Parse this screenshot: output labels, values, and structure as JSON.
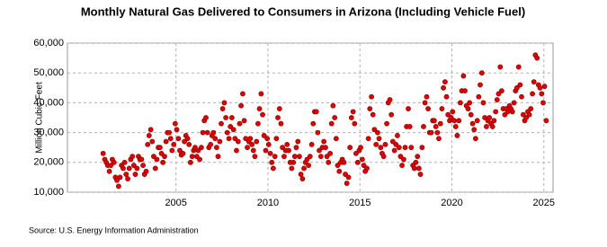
{
  "chart_data": {
    "type": "scatter",
    "title": "Monthly Natural Gas Delivered to Consumers in Arizona (Including Vehicle Fuel)",
    "y_label": "Million Cubic Feet",
    "source": "Source: U.S. Energy Information Administration",
    "color": "#e00000",
    "grid": true,
    "xlim": [
      1999.1,
      2025.5
    ],
    "xticks": [
      2005,
      2010,
      2015,
      2020,
      2025
    ],
    "ylim": [
      10000,
      60000
    ],
    "yticks": [
      {
        "value": 10000,
        "label": "10,000"
      },
      {
        "value": 20000,
        "label": "20,000"
      },
      {
        "value": 30000,
        "label": "30,000"
      },
      {
        "value": 40000,
        "label": "40,000"
      },
      {
        "value": 50000,
        "label": "50,000"
      },
      {
        "value": 60000,
        "label": "60,000"
      }
    ],
    "x": [
      2001.04,
      2001.13,
      2001.21,
      2001.29,
      2001.38,
      2001.46,
      2001.54,
      2001.63,
      2001.71,
      2001.79,
      2001.88,
      2001.96,
      2002.04,
      2002.13,
      2002.21,
      2002.29,
      2002.38,
      2002.46,
      2002.54,
      2002.63,
      2002.71,
      2002.79,
      2002.88,
      2002.96,
      2003.04,
      2003.13,
      2003.21,
      2003.29,
      2003.38,
      2003.46,
      2003.54,
      2003.63,
      2003.71,
      2003.79,
      2003.88,
      2003.96,
      2004.04,
      2004.13,
      2004.21,
      2004.29,
      2004.38,
      2004.46,
      2004.54,
      2004.63,
      2004.71,
      2004.79,
      2004.88,
      2004.96,
      2005.04,
      2005.13,
      2005.21,
      2005.29,
      2005.38,
      2005.46,
      2005.54,
      2005.63,
      2005.71,
      2005.79,
      2005.88,
      2005.96,
      2006.04,
      2006.13,
      2006.21,
      2006.29,
      2006.38,
      2006.46,
      2006.54,
      2006.63,
      2006.71,
      2006.79,
      2006.88,
      2006.96,
      2007.04,
      2007.13,
      2007.21,
      2007.29,
      2007.38,
      2007.46,
      2007.54,
      2007.63,
      2007.71,
      2007.79,
      2007.88,
      2007.96,
      2008.04,
      2008.13,
      2008.21,
      2008.29,
      2008.38,
      2008.46,
      2008.54,
      2008.63,
      2008.71,
      2008.79,
      2008.88,
      2008.96,
      2009.04,
      2009.13,
      2009.21,
      2009.29,
      2009.38,
      2009.46,
      2009.54,
      2009.63,
      2009.71,
      2009.79,
      2009.88,
      2009.96,
      2010.04,
      2010.13,
      2010.21,
      2010.29,
      2010.38,
      2010.46,
      2010.54,
      2010.63,
      2010.71,
      2010.79,
      2010.88,
      2010.96,
      2011.04,
      2011.13,
      2011.21,
      2011.29,
      2011.38,
      2011.46,
      2011.54,
      2011.63,
      2011.71,
      2011.79,
      2011.88,
      2011.96,
      2012.04,
      2012.13,
      2012.21,
      2012.29,
      2012.38,
      2012.46,
      2012.54,
      2012.63,
      2012.71,
      2012.79,
      2012.88,
      2012.96,
      2013.04,
      2013.13,
      2013.21,
      2013.29,
      2013.38,
      2013.46,
      2013.54,
      2013.63,
      2013.71,
      2013.79,
      2013.88,
      2013.96,
      2014.04,
      2014.13,
      2014.21,
      2014.29,
      2014.38,
      2014.46,
      2014.54,
      2014.63,
      2014.71,
      2014.79,
      2014.88,
      2014.96,
      2015.04,
      2015.13,
      2015.21,
      2015.29,
      2015.38,
      2015.46,
      2015.54,
      2015.63,
      2015.71,
      2015.79,
      2015.88,
      2015.96,
      2016.04,
      2016.13,
      2016.21,
      2016.29,
      2016.38,
      2016.46,
      2016.54,
      2016.63,
      2016.71,
      2016.79,
      2016.88,
      2016.96,
      2017.04,
      2017.13,
      2017.21,
      2017.29,
      2017.38,
      2017.46,
      2017.54,
      2017.63,
      2017.71,
      2017.79,
      2017.88,
      2017.96,
      2018.04,
      2018.13,
      2018.21,
      2018.29,
      2018.38,
      2018.46,
      2018.54,
      2018.63,
      2018.71,
      2018.79,
      2018.88,
      2018.96,
      2019.04,
      2019.13,
      2019.21,
      2019.29,
      2019.38,
      2019.46,
      2019.54,
      2019.63,
      2019.71,
      2019.79,
      2019.88,
      2019.96,
      2020.04,
      2020.13,
      2020.21,
      2020.29,
      2020.38,
      2020.46,
      2020.54,
      2020.63,
      2020.71,
      2020.79,
      2020.88,
      2020.96,
      2021.04,
      2021.13,
      2021.21,
      2021.29,
      2021.38,
      2021.46,
      2021.54,
      2021.63,
      2021.71,
      2021.79,
      2021.88,
      2021.96,
      2022.04,
      2022.13,
      2022.21,
      2022.29,
      2022.38,
      2022.46,
      2022.54,
      2022.63,
      2022.71,
      2022.79,
      2022.88,
      2022.96,
      2023.04,
      2023.13,
      2023.21,
      2023.29,
      2023.38,
      2023.46,
      2023.54,
      2023.63,
      2023.71,
      2023.79,
      2023.88,
      2023.96,
      2024.04,
      2024.13,
      2024.21,
      2024.29,
      2024.38,
      2024.46,
      2024.54,
      2024.63,
      2024.71,
      2024.79,
      2024.88,
      2024.96,
      2025.04,
      2025.13
    ],
    "values": [
      23000,
      21000,
      20000,
      19000,
      17000,
      19000,
      21000,
      20000,
      15000,
      14000,
      12000,
      15000,
      19000,
      18000,
      20000,
      16000,
      14500,
      18000,
      21000,
      22000,
      19000,
      16000,
      18000,
      22000,
      21000,
      21000,
      19000,
      16000,
      17000,
      26000,
      29000,
      31000,
      27000,
      22000,
      18000,
      21000,
      25000,
      25000,
      23000,
      20000,
      22000,
      27000,
      30000,
      30000,
      28000,
      24000,
      26000,
      33000,
      31000,
      28000,
      24000,
      22500,
      23000,
      27000,
      29000,
      28000,
      26000,
      20000,
      22000,
      24000,
      25000,
      22000,
      24000,
      21000,
      25000,
      30000,
      34000,
      35000,
      30000,
      25000,
      26000,
      29000,
      30000,
      28000,
      25000,
      22000,
      27000,
      33000,
      38000,
      40000,
      35000,
      30000,
      28000,
      32000,
      35000,
      31000,
      28000,
      24000,
      27000,
      33000,
      39000,
      43000,
      34000,
      28000,
      25000,
      27000,
      28000,
      26000,
      24000,
      22000,
      27000,
      33000,
      38000,
      43000,
      36000,
      29000,
      24000,
      28000,
      26000,
      23000,
      20000,
      18000,
      22000,
      28000,
      35000,
      38000,
      33000,
      25000,
      22000,
      24000,
      26000,
      24000,
      20000,
      18000,
      20000,
      22000,
      25000,
      27000,
      22000,
      16000,
      14500,
      18000,
      20000,
      21000,
      19000,
      22000,
      26000,
      33000,
      37000,
      37000,
      30000,
      24000,
      22000,
      25000,
      27000,
      25000,
      22000,
      20000,
      23000,
      33000,
      39000,
      35000,
      28000,
      19000,
      17000,
      20000,
      21000,
      20000,
      16000,
      13000,
      15000,
      25000,
      35000,
      37000,
      33000,
      23000,
      20000,
      24000,
      25000,
      21000,
      19000,
      17000,
      18000,
      28000,
      38000,
      42000,
      36000,
      31000,
      26000,
      30000,
      28000,
      25000,
      23000,
      22000,
      26000,
      33000,
      40000,
      41000,
      36000,
      27000,
      24000,
      26000,
      29000,
      25000,
      22000,
      19000,
      21000,
      25000,
      32000,
      38000,
      32000,
      25000,
      19000,
      18000,
      20000,
      22000,
      18000,
      16000,
      25000,
      32000,
      40000,
      42000,
      38000,
      30000,
      30000,
      34000,
      34000,
      32000,
      30000,
      28000,
      33000,
      38000,
      45000,
      47000,
      42000,
      36000,
      34000,
      35000,
      37000,
      34000,
      32000,
      29000,
      34000,
      40000,
      44000,
      49000,
      44000,
      39000,
      38000,
      40000,
      36000,
      33000,
      31000,
      28000,
      34000,
      42000,
      46000,
      50000,
      40000,
      35000,
      32000,
      34000,
      35000,
      33000,
      32000,
      34000,
      37000,
      41000,
      43000,
      52000,
      44000,
      38000,
      36000,
      38000,
      37000,
      39000,
      38000,
      37000,
      40000,
      44000,
      45000,
      52000,
      46000,
      42000,
      36000,
      34000,
      35000,
      37000,
      36000,
      38000,
      43000,
      47000,
      56000,
      55000,
      46000,
      45000,
      43000,
      40000,
      45500,
      34000
    ]
  }
}
